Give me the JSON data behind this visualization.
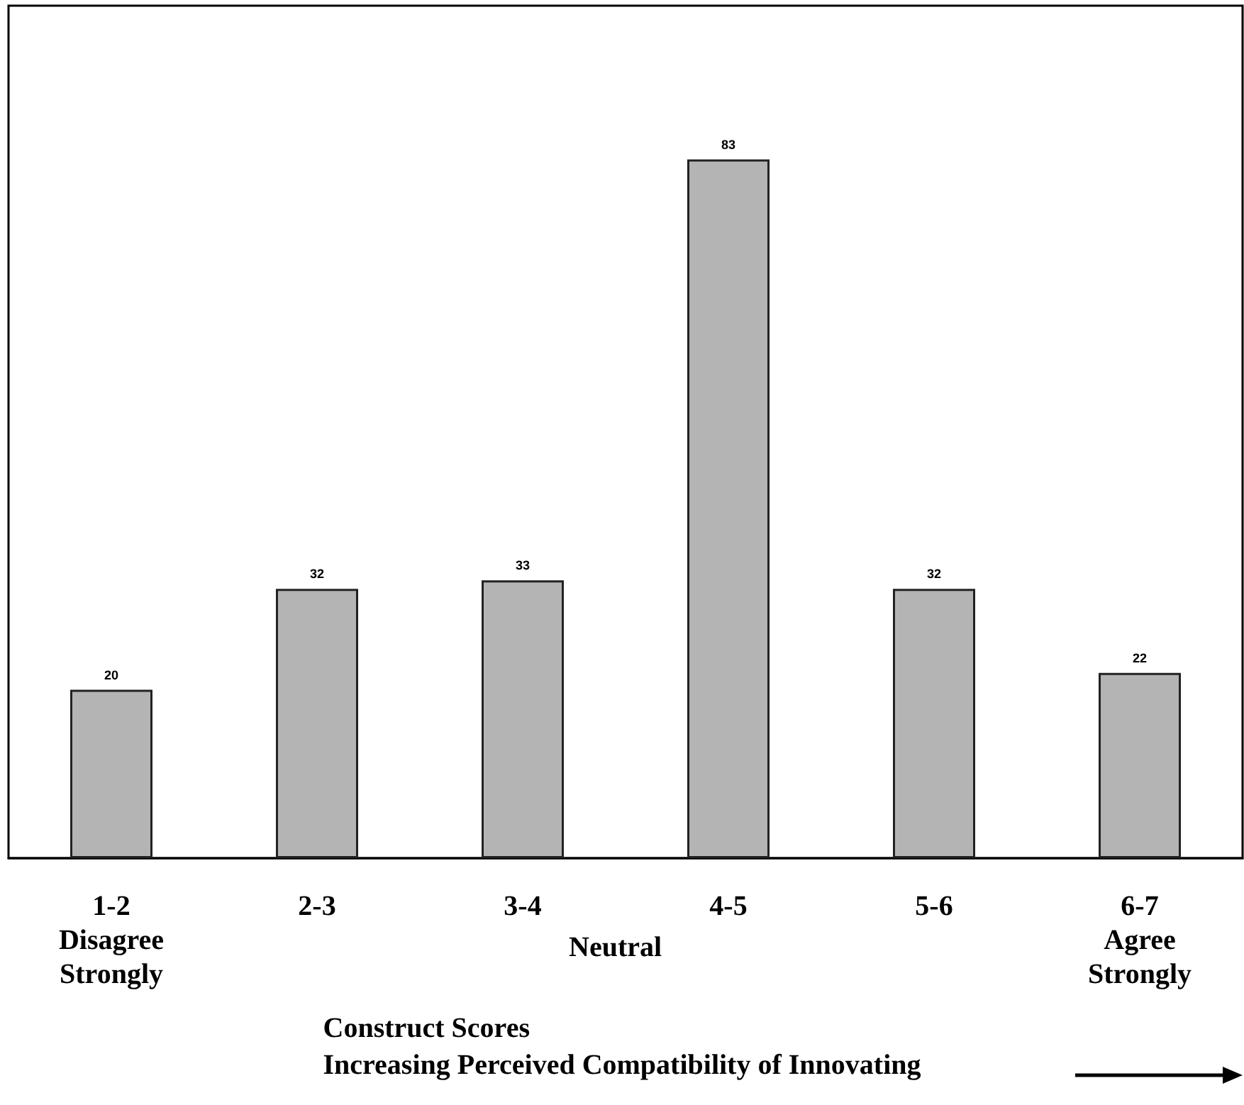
{
  "chart_data": {
    "type": "bar",
    "categories": [
      "1-2\nDisagree\nStrongly",
      "2-3",
      "3-4",
      "4-5",
      "5-6",
      "6-7\nAgree\nStrongly"
    ],
    "values": [
      20,
      32,
      33,
      83,
      32,
      22
    ],
    "color": "#b4b4b4",
    "data_labels": true,
    "grid": false,
    "xlabel": "Construct Scores\nIncreasing Perceived Compatibility of Innovating",
    "annotations": [
      "Neutral"
    ]
  }
}
